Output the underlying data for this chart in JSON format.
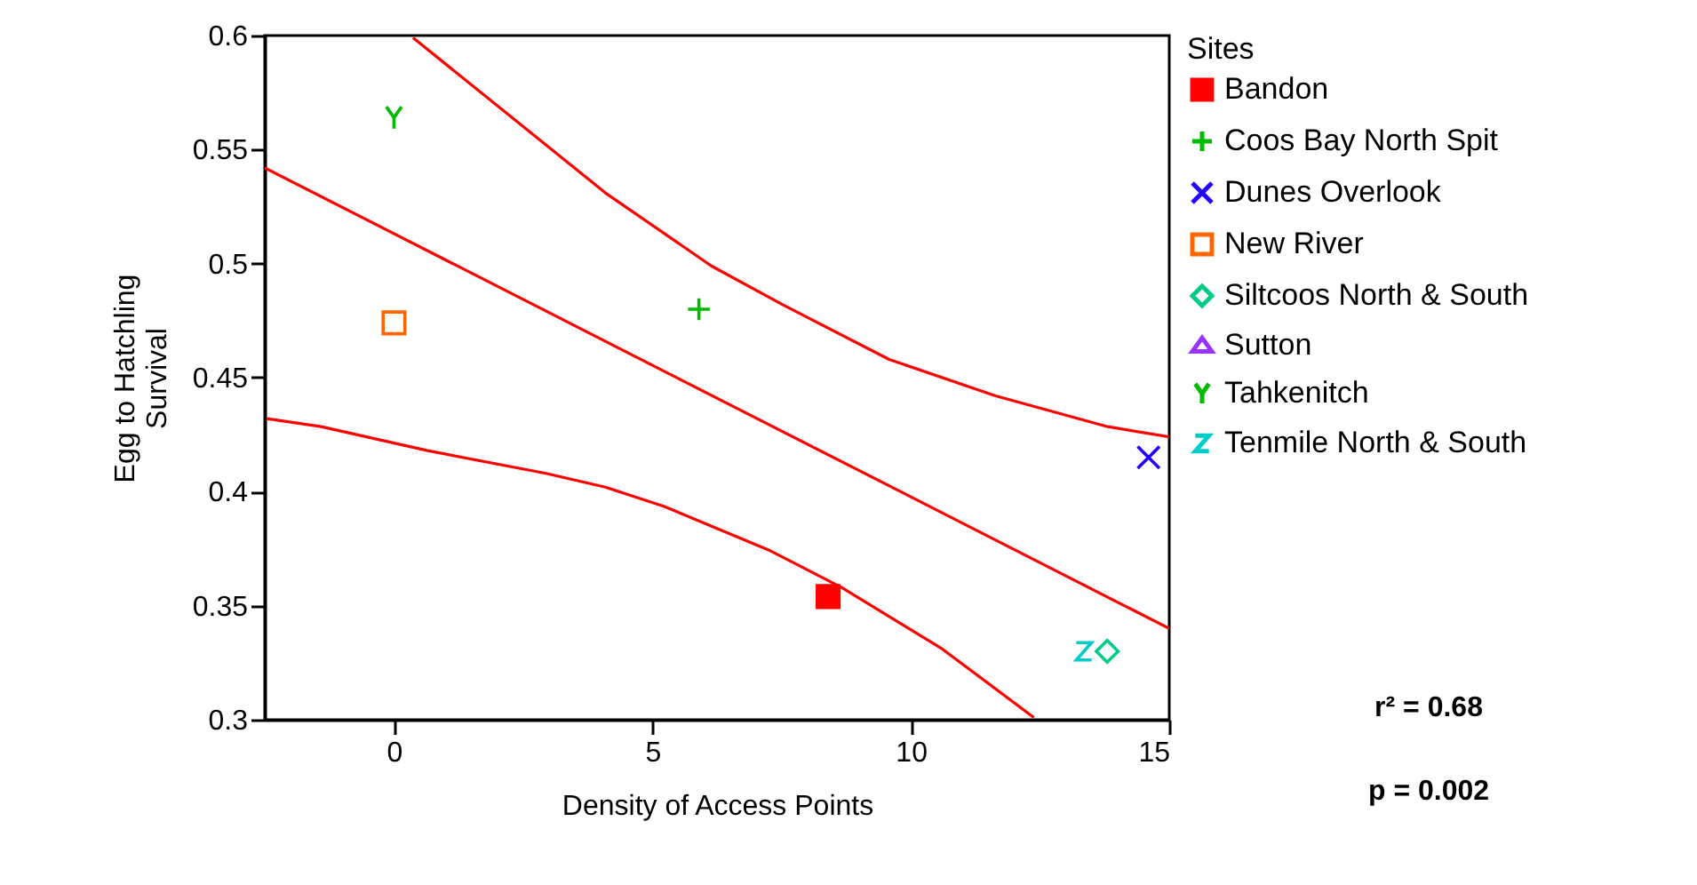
{
  "chart_data": {
    "type": "scatter",
    "xlabel": "Density of Access Points",
    "ylabel": "Egg to Hatchling Survival",
    "legend_title": "Sites",
    "xlim": [
      -2.5,
      15
    ],
    "xticks": [
      0,
      5,
      10,
      15
    ],
    "ylim": [
      0.3,
      0.6
    ],
    "yticks": [
      0.3,
      0.35,
      0.4,
      0.45,
      0.5,
      0.55,
      0.6
    ],
    "grid": false,
    "legend": "right",
    "series": [
      {
        "name": "Bandon",
        "color": "#ff0000",
        "x": [
          8.4
        ],
        "values": [
          0.354
        ]
      },
      {
        "name": "Coos Bay North Spit",
        "color": "#00bb00",
        "x": [
          5.9
        ],
        "values": [
          0.48
        ]
      },
      {
        "name": "Dunes Overlook",
        "color": "#2200ff",
        "x": [
          14.6
        ],
        "values": [
          0.415
        ]
      },
      {
        "name": "New River",
        "color": "#ff6600",
        "x": [
          0
        ],
        "values": [
          0.474
        ]
      },
      {
        "name": "Siltcoos North & South",
        "color": "#00cc88",
        "x": [
          13.8
        ],
        "values": [
          0.33
        ]
      },
      {
        "name": "Sutton",
        "color": "#9933ff"
      },
      {
        "name": "Tahkenitch",
        "color": "#00bb00",
        "x": [
          0
        ],
        "values": [
          0.564
        ]
      },
      {
        "name": "Tenmile North & South",
        "color": "#00cccc",
        "x": [
          13.35
        ],
        "values": [
          0.33
        ]
      },
      {
        "type": "line",
        "color": "#ff0000",
        "x": [
          -2.5,
          15
        ],
        "values": [
          0.542,
          0.34
        ]
      },
      {
        "type": "line",
        "color": "#ff0000",
        "x": [
          0.37,
          4.09,
          6.14,
          7.52,
          9.58,
          11.64,
          13.81,
          15
        ],
        "values": [
          0.599,
          0.531,
          0.499,
          0.482,
          0.458,
          0.442,
          0.4285,
          0.424
        ]
      },
      {
        "type": "line",
        "color": "#ff0000",
        "x": [
          -2.46,
          -1.41,
          0.65,
          2.94,
          4.09,
          5.23,
          7.29,
          8.66,
          10.61,
          12.38
        ],
        "values": [
          0.432,
          0.4285,
          0.418,
          0.408,
          0.402,
          0.3935,
          0.374,
          0.358,
          0.331,
          0.301
        ]
      }
    ],
    "annotations": [
      "r² = 0.68",
      "p = 0.002"
    ]
  }
}
